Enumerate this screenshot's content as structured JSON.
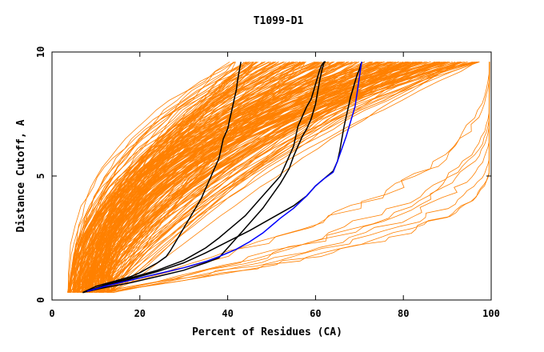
{
  "chart_data": {
    "type": "line",
    "title": "T1099-D1",
    "xlabel": "Percent of Residues (CA)",
    "ylabel": "Distance Cutoff, A",
    "xlim": [
      0,
      100
    ],
    "ylim": [
      0,
      10
    ],
    "x_ticks": [
      0,
      20,
      40,
      60,
      80,
      100
    ],
    "y_ticks": [
      0,
      5,
      10
    ],
    "grid": false,
    "colors": {
      "models": "#ff8000",
      "highlight": "#000000",
      "best": "#0000ff"
    },
    "series": [
      {
        "group": "highlight",
        "x": [
          7,
          10,
          14,
          18,
          20,
          22,
          24,
          26,
          27,
          28,
          29,
          30,
          31,
          32,
          33,
          34,
          35,
          36,
          37,
          38,
          38.5,
          39,
          40,
          40.5,
          41,
          41.5,
          42,
          42.2,
          42.5,
          42.8,
          43
        ],
        "y": [
          0.3,
          0.55,
          0.75,
          0.95,
          1.1,
          1.3,
          1.5,
          1.75,
          2,
          2.3,
          2.6,
          2.9,
          3.2,
          3.5,
          3.8,
          4.1,
          4.5,
          4.9,
          5.3,
          5.7,
          6.1,
          6.5,
          6.9,
          7.3,
          7.7,
          8.1,
          8.5,
          8.8,
          9.1,
          9.4,
          9.6
        ]
      },
      {
        "group": "highlight",
        "x": [
          7,
          12,
          18,
          24,
          30,
          35,
          38,
          40,
          42,
          44,
          46,
          48,
          50,
          52,
          53,
          54,
          55,
          55.5,
          56,
          57,
          58,
          59,
          59.5,
          60,
          60.5,
          61,
          61.5,
          62,
          62.3
        ],
        "y": [
          0.3,
          0.6,
          0.9,
          1.2,
          1.6,
          2.1,
          2.5,
          2.8,
          3.1,
          3.4,
          3.8,
          4.2,
          4.6,
          5.0,
          5.4,
          5.8,
          6.2,
          6.6,
          7.0,
          7.4,
          7.8,
          8.1,
          8.4,
          8.7,
          9.0,
          9.3,
          9.5,
          9.6,
          9.6
        ]
      },
      {
        "group": "highlight",
        "x": [
          7,
          12,
          18,
          24,
          30,
          35,
          38,
          40,
          42,
          44,
          46,
          48,
          50,
          52,
          54,
          55,
          56,
          57,
          58,
          59,
          60,
          60.5,
          61,
          61.5,
          62
        ],
        "y": [
          0.3,
          0.5,
          0.7,
          0.95,
          1.2,
          1.5,
          1.7,
          2.1,
          2.5,
          2.9,
          3.3,
          3.7,
          4.2,
          4.7,
          5.3,
          5.8,
          6.2,
          6.6,
          6.9,
          7.3,
          7.9,
          8.4,
          8.9,
          9.3,
          9.6
        ]
      },
      {
        "group": "highlight",
        "x": [
          7,
          12,
          18,
          24,
          30,
          35,
          40,
          45,
          50,
          55,
          58,
          60,
          62,
          64,
          65,
          65.5,
          66,
          66.5,
          67,
          67.5,
          68,
          68.5,
          69,
          69.5,
          70,
          70.3,
          70.6
        ],
        "y": [
          0.3,
          0.55,
          0.85,
          1.15,
          1.5,
          1.9,
          2.35,
          2.8,
          3.3,
          3.8,
          4.2,
          4.6,
          4.9,
          5.2,
          5.6,
          6.0,
          6.5,
          7.0,
          7.4,
          7.8,
          8.2,
          8.5,
          8.8,
          9.1,
          9.3,
          9.5,
          9.6
        ]
      },
      {
        "group": "best",
        "x": [
          8,
          12,
          18,
          24,
          30,
          35,
          38,
          42,
          45,
          48,
          50,
          52,
          55,
          58,
          60,
          62,
          64,
          65,
          66,
          67,
          68,
          69,
          69.5,
          70,
          70.5
        ],
        "y": [
          0.35,
          0.55,
          0.8,
          1.05,
          1.3,
          1.55,
          1.75,
          2.05,
          2.35,
          2.7,
          3.0,
          3.3,
          3.7,
          4.2,
          4.6,
          4.9,
          5.15,
          5.6,
          6.1,
          6.6,
          7.2,
          7.8,
          8.4,
          9.0,
          9.6
        ]
      }
    ]
  }
}
